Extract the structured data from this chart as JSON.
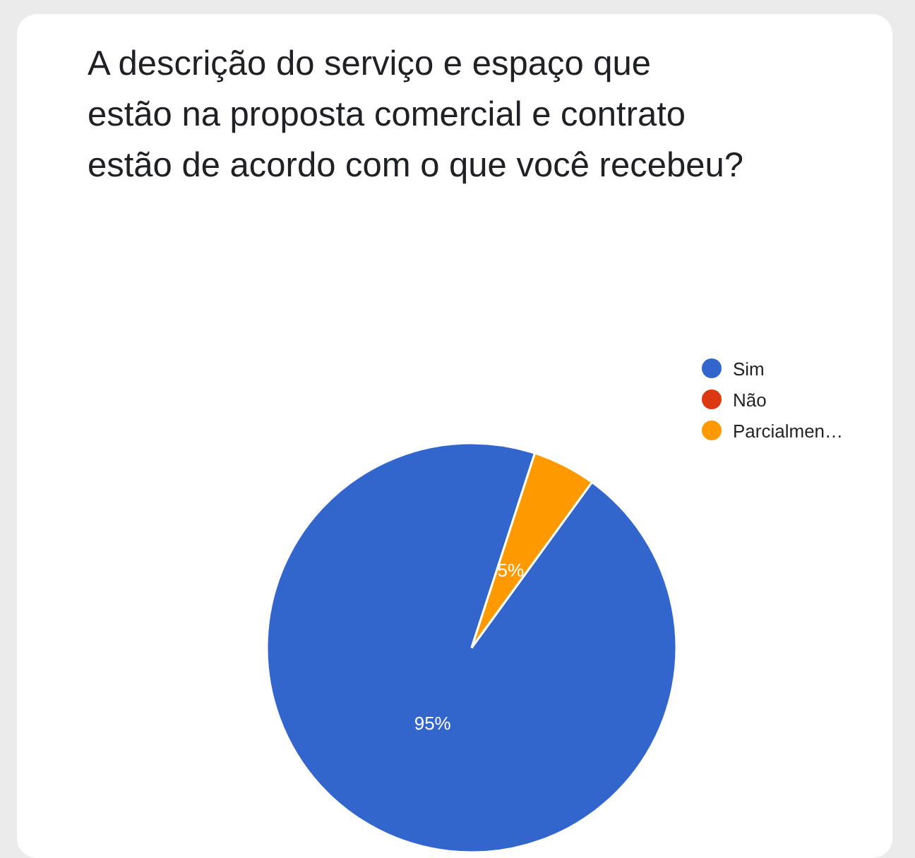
{
  "chart_data": {
    "type": "pie",
    "title": "A descrição do serviço e espaço que\nestão na proposta comercial e contrato\nestão de acordo com o que você recebeu?",
    "categories": [
      "Sim",
      "Não",
      "Parcialmen…"
    ],
    "values": [
      95,
      0,
      5
    ],
    "colors": [
      "#3366cc",
      "#dc3912",
      "#ff9900"
    ],
    "value_labels": [
      "95%",
      null,
      "5%"
    ],
    "legend": "top right"
  }
}
